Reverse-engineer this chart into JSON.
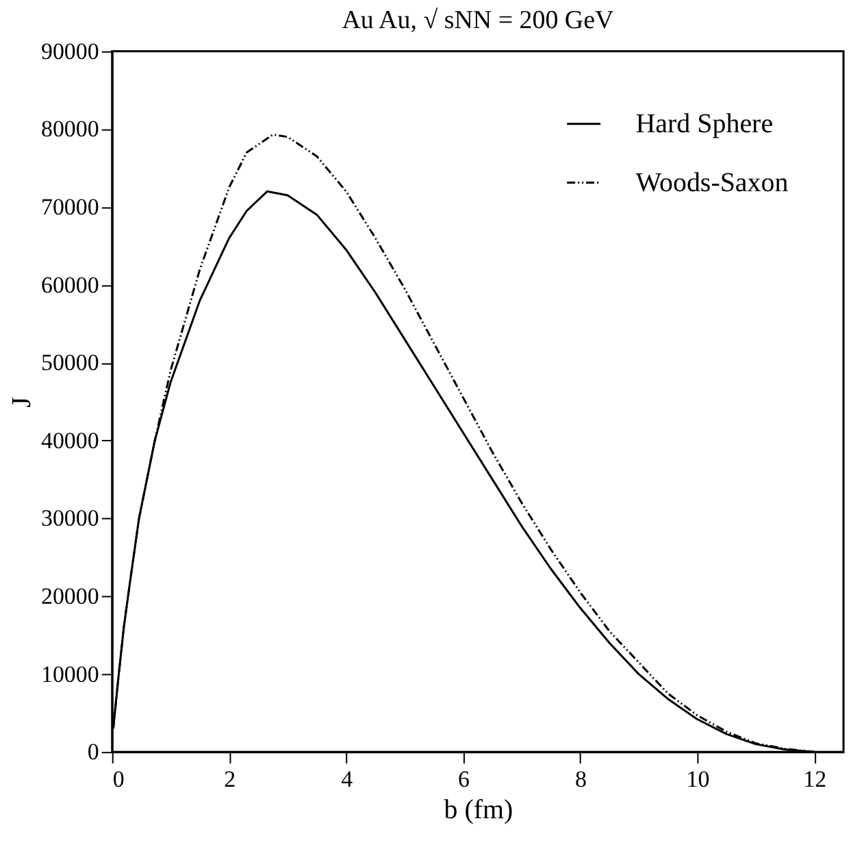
{
  "chart_data": {
    "type": "line",
    "title": "Au Au, √ sNN = 200 GeV",
    "xlabel": "b (fm)",
    "ylabel": "J",
    "xlim": [
      0,
      12.5
    ],
    "xticks": [
      0,
      2,
      4,
      6,
      8,
      10,
      12
    ],
    "ylim": [
      0,
      90000
    ],
    "yticks": [
      0,
      10000,
      20000,
      30000,
      40000,
      50000,
      60000,
      70000,
      80000,
      90000
    ],
    "grid": false,
    "legend": "top right",
    "marker": "none",
    "series": [
      {
        "name": "Hard Sphere",
        "color": "#000000",
        "line_style": "solid",
        "x": [
          0.02,
          0.1,
          0.2,
          0.3,
          0.46,
          0.73,
          1.0,
          1.5,
          2.0,
          2.3,
          2.65,
          3.0,
          3.5,
          4.0,
          4.5,
          5,
          5.5,
          6,
          6.5,
          7,
          7.5,
          8,
          8.5,
          9,
          9.5,
          10,
          10.5,
          11,
          11.5,
          12
        ],
        "values": [
          3000,
          9000,
          16000,
          21500,
          30000,
          40000,
          47500,
          58000,
          66000,
          69500,
          72000,
          71500,
          69000,
          64500,
          59000,
          53000,
          47000,
          41000,
          35000,
          29000,
          23500,
          18500,
          14000,
          10000,
          6800,
          4200,
          2300,
          1000,
          300,
          0
        ]
      },
      {
        "name": "Woods-Saxon",
        "color": "#000000",
        "line_style": "dashed",
        "x": [
          0.02,
          0.1,
          0.2,
          0.3,
          0.46,
          0.73,
          1.0,
          1.5,
          2.0,
          2.3,
          2.75,
          3.0,
          3.5,
          4.0,
          4.5,
          5,
          5.5,
          6,
          6.5,
          7,
          7.5,
          8,
          8.5,
          9,
          9.5,
          10,
          10.5,
          11,
          11.5,
          12
        ],
        "values": [
          3000,
          9000,
          16000,
          21500,
          30000,
          40000,
          49000,
          62000,
          72500,
          77000,
          79300,
          79000,
          76500,
          72000,
          66000,
          59500,
          52500,
          45500,
          38500,
          32000,
          26000,
          20500,
          15500,
          11500,
          7500,
          4700,
          2600,
          1100,
          400,
          0
        ]
      }
    ]
  }
}
